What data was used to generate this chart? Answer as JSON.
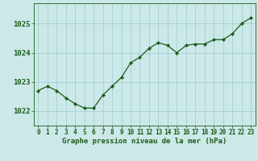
{
  "x": [
    0,
    1,
    2,
    3,
    4,
    5,
    6,
    7,
    8,
    9,
    10,
    11,
    12,
    13,
    14,
    15,
    16,
    17,
    18,
    19,
    20,
    21,
    22,
    23
  ],
  "y": [
    1022.7,
    1022.85,
    1022.7,
    1022.45,
    1022.25,
    1022.1,
    1022.1,
    1022.55,
    1022.85,
    1023.15,
    1023.65,
    1023.85,
    1024.15,
    1024.35,
    1024.25,
    1024.0,
    1024.25,
    1024.3,
    1024.3,
    1024.45,
    1024.45,
    1024.65,
    1025.0,
    1025.2
  ],
  "line_color": "#1a5c1a",
  "marker": "D",
  "marker_size": 2.2,
  "bg_color": "#cce8e8",
  "grid_color": "#99cccc",
  "xlabel": "Graphe pression niveau de la mer (hPa)",
  "xlabel_color": "#1a5c1a",
  "tick_color": "#1a5c1a",
  "ylim": [
    1021.5,
    1025.7
  ],
  "yticks": [
    1022,
    1023,
    1024,
    1025
  ],
  "xlim": [
    -0.5,
    23.5
  ],
  "xticks": [
    0,
    1,
    2,
    3,
    4,
    5,
    6,
    7,
    8,
    9,
    10,
    11,
    12,
    13,
    14,
    15,
    16,
    17,
    18,
    19,
    20,
    21,
    22,
    23
  ],
  "tick_fontsize": 5.5,
  "ytick_fontsize": 6.5,
  "xlabel_fontsize": 6.5
}
